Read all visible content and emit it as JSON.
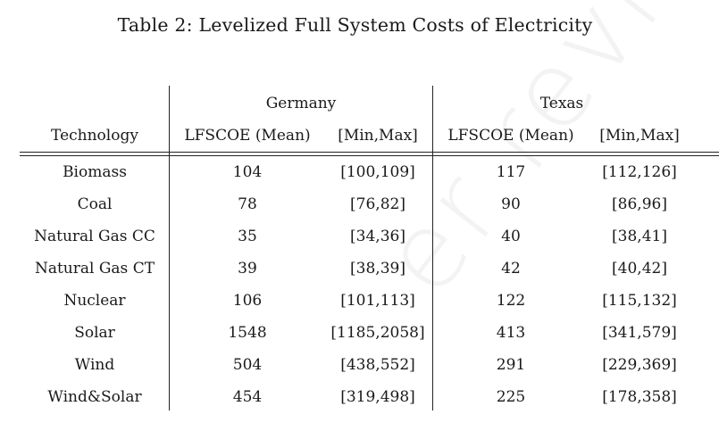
{
  "caption": "Table 2: Levelized Full System Costs of Electricity",
  "watermark": "er reviewe",
  "table": {
    "groups": [
      "Germany",
      "Texas"
    ],
    "headers": [
      "Technology",
      "LFSCOE (Mean)",
      "[Min,Max]",
      "LFSCOE (Mean)",
      "[Min,Max]"
    ],
    "rows": [
      [
        "Biomass",
        "104",
        "[100,109]",
        "117",
        "[112,126]"
      ],
      [
        "Coal",
        "78",
        "[76,82]",
        "90",
        "[86,96]"
      ],
      [
        "Natural Gas CC",
        "35",
        "[34,36]",
        "40",
        "[38,41]"
      ],
      [
        "Natural Gas CT",
        "39",
        "[38,39]",
        "42",
        "[40,42]"
      ],
      [
        "Nuclear",
        "106",
        "[101,113]",
        "122",
        "[115,132]"
      ],
      [
        "Solar",
        "1548",
        "[1185,2058]",
        "413",
        "[341,579]"
      ],
      [
        "Wind",
        "504",
        "[438,552]",
        "291",
        "[229,369]"
      ],
      [
        "Wind&Solar",
        "454",
        "[319,498]",
        "225",
        "[178,358]"
      ]
    ]
  }
}
